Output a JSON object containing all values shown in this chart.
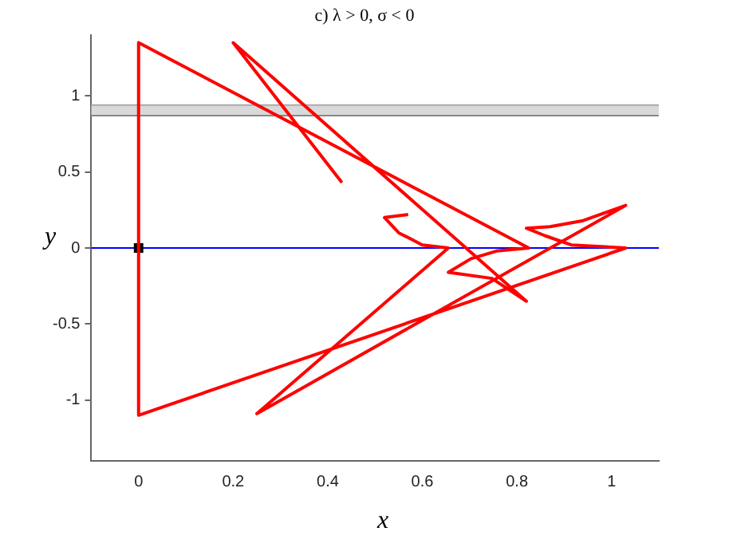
{
  "chart_data": {
    "type": "line",
    "title": "c) λ > 0, σ < 0",
    "xlabel": "x",
    "ylabel": "y",
    "xlim": [
      -0.1,
      1.1
    ],
    "ylim": [
      -1.4,
      1.4
    ],
    "xticks": [
      0,
      0.2,
      0.4,
      0.6,
      0.8,
      1
    ],
    "yticks": [
      -1,
      -0.5,
      0,
      0.5,
      1
    ],
    "grid": false,
    "legend": false,
    "series": [
      {
        "marker": "none",
        "color": "#ff0000",
        "x": [
          0.43,
          0.2,
          0.82,
          0.747,
          0.655,
          0.703,
          0.757,
          0.825,
          0,
          0,
          1.03,
          0.915,
          0.86,
          0.82,
          0.87,
          0.94,
          1.03,
          0.25,
          0.655,
          0.6,
          0.55,
          0.52,
          0.57
        ],
        "values": [
          0.43,
          1.35,
          -0.35,
          -0.2,
          -0.16,
          -0.07,
          -0.02,
          0,
          1.35,
          -1.1,
          0,
          0.02,
          0.08,
          0.13,
          0.14,
          0.18,
          0.28,
          -1.09,
          0,
          0.02,
          0.1,
          0.2,
          0.22
        ]
      },
      {
        "type": "scatter",
        "marker": "square",
        "color": "#000000",
        "x": [
          0
        ],
        "values": [
          0
        ]
      }
    ],
    "ref_lines": [
      {
        "axis": "y",
        "value": 0,
        "color": "#0000ff"
      },
      {
        "axis": "y",
        "value": 0.87,
        "color": "#888888"
      },
      {
        "axis": "y",
        "value": 0.94,
        "color": "#aaaaaa"
      }
    ],
    "bands": [
      {
        "axis": "y",
        "from": 0.87,
        "to": 0.94,
        "color": "#d9d9d9"
      }
    ]
  }
}
